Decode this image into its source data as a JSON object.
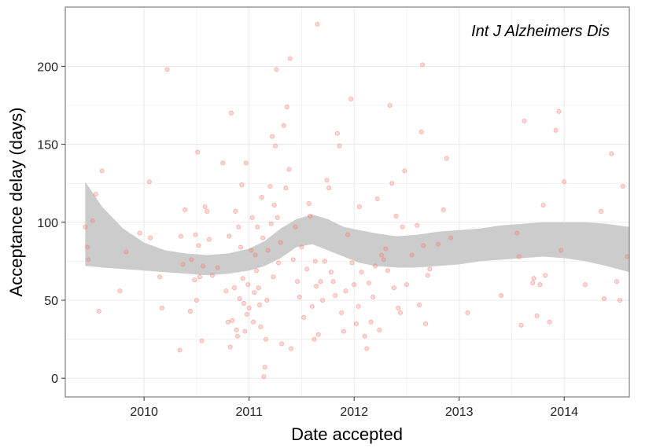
{
  "chart_data": {
    "type": "scatter",
    "annotation": "Int J Alzheimers Dis",
    "xlabel": "Date accepted",
    "ylabel": "Acceptance delay (days)",
    "xlim": [
      2009.25,
      2014.62
    ],
    "ylim": [
      -12,
      238
    ],
    "x_ticks": [
      2010,
      2011,
      2012,
      2013,
      2014
    ],
    "x_tick_labels": [
      "2010",
      "2011",
      "2012",
      "2013",
      "2014"
    ],
    "y_ticks": [
      0,
      50,
      100,
      150,
      200
    ],
    "y_tick_labels": [
      "0",
      "50",
      "100",
      "150",
      "200"
    ],
    "grid": true,
    "colors": {
      "points": "#f8766d",
      "band": "#cccccc",
      "grid": "#ebebeb",
      "border": "#7f7f7f"
    },
    "points": [
      [
        2009.44,
        97
      ],
      [
        2009.46,
        84
      ],
      [
        2009.47,
        76
      ],
      [
        2009.51,
        101
      ],
      [
        2009.54,
        118
      ],
      [
        2009.57,
        43
      ],
      [
        2009.6,
        133
      ],
      [
        2009.77,
        56
      ],
      [
        2009.83,
        81
      ],
      [
        2009.96,
        93
      ],
      [
        2010.05,
        126
      ],
      [
        2010.06,
        90
      ],
      [
        2010.15,
        65
      ],
      [
        2010.17,
        45
      ],
      [
        2010.22,
        198
      ],
      [
        2010.34,
        18
      ],
      [
        2010.35,
        91
      ],
      [
        2010.37,
        73
      ],
      [
        2010.39,
        108
      ],
      [
        2010.44,
        43
      ],
      [
        2010.45,
        76
      ],
      [
        2010.48,
        63
      ],
      [
        2010.49,
        92
      ],
      [
        2010.5,
        50
      ],
      [
        2010.51,
        145
      ],
      [
        2010.52,
        85
      ],
      [
        2010.53,
        65
      ],
      [
        2010.55,
        24
      ],
      [
        2010.56,
        72
      ],
      [
        2010.58,
        110
      ],
      [
        2010.6,
        107
      ],
      [
        2010.62,
        89
      ],
      [
        2010.65,
        66
      ],
      [
        2010.7,
        71
      ],
      [
        2010.75,
        138
      ],
      [
        2010.78,
        56
      ],
      [
        2010.8,
        36
      ],
      [
        2010.81,
        91
      ],
      [
        2010.82,
        20
      ],
      [
        2010.83,
        170
      ],
      [
        2010.84,
        37
      ],
      [
        2010.86,
        58
      ],
      [
        2010.87,
        107
      ],
      [
        2010.88,
        31
      ],
      [
        2010.89,
        27
      ],
      [
        2010.9,
        97
      ],
      [
        2010.91,
        51
      ],
      [
        2010.92,
        84
      ],
      [
        2010.93,
        124
      ],
      [
        2010.94,
        64
      ],
      [
        2010.95,
        48
      ],
      [
        2010.96,
        30
      ],
      [
        2010.97,
        138
      ],
      [
        2010.98,
        41
      ],
      [
        2010.99,
        60
      ],
      [
        2011.0,
        45
      ],
      [
        2011.02,
        82
      ],
      [
        2011.03,
        103
      ],
      [
        2011.04,
        36
      ],
      [
        2011.05,
        55
      ],
      [
        2011.06,
        79
      ],
      [
        2011.07,
        69
      ],
      [
        2011.08,
        97
      ],
      [
        2011.09,
        58
      ],
      [
        2011.1,
        47
      ],
      [
        2011.11,
        33
      ],
      [
        2011.12,
        116
      ],
      [
        2011.13,
        90
      ],
      [
        2011.14,
        1
      ],
      [
        2011.15,
        7
      ],
      [
        2011.16,
        25
      ],
      [
        2011.17,
        50
      ],
      [
        2011.18,
        82
      ],
      [
        2011.2,
        123
      ],
      [
        2011.21,
        99
      ],
      [
        2011.22,
        155
      ],
      [
        2011.23,
        65
      ],
      [
        2011.24,
        111
      ],
      [
        2011.25,
        149
      ],
      [
        2011.26,
        198
      ],
      [
        2011.27,
        103
      ],
      [
        2011.28,
        74
      ],
      [
        2011.3,
        87
      ],
      [
        2011.31,
        22
      ],
      [
        2011.33,
        162
      ],
      [
        2011.35,
        122
      ],
      [
        2011.36,
        174
      ],
      [
        2011.38,
        134
      ],
      [
        2011.39,
        205
      ],
      [
        2011.4,
        19
      ],
      [
        2011.42,
        76
      ],
      [
        2011.44,
        97
      ],
      [
        2011.46,
        62
      ],
      [
        2011.48,
        52
      ],
      [
        2011.5,
        84
      ],
      [
        2011.52,
        39
      ],
      [
        2011.55,
        70
      ],
      [
        2011.57,
        112
      ],
      [
        2011.58,
        104
      ],
      [
        2011.6,
        46
      ],
      [
        2011.62,
        25
      ],
      [
        2011.63,
        75
      ],
      [
        2011.64,
        59
      ],
      [
        2011.65,
        227
      ],
      [
        2011.66,
        28
      ],
      [
        2011.68,
        62
      ],
      [
        2011.7,
        50
      ],
      [
        2011.72,
        75
      ],
      [
        2011.74,
        127
      ],
      [
        2011.76,
        122
      ],
      [
        2011.78,
        68
      ],
      [
        2011.8,
        62
      ],
      [
        2011.82,
        53
      ],
      [
        2011.84,
        157
      ],
      [
        2011.86,
        149
      ],
      [
        2011.88,
        42
      ],
      [
        2011.9,
        30
      ],
      [
        2011.92,
        56
      ],
      [
        2011.94,
        92
      ],
      [
        2011.97,
        179
      ],
      [
        2011.98,
        74
      ],
      [
        2012.0,
        60
      ],
      [
        2012.02,
        35
      ],
      [
        2012.04,
        46
      ],
      [
        2012.05,
        110
      ],
      [
        2012.07,
        68
      ],
      [
        2012.1,
        27
      ],
      [
        2012.12,
        19
      ],
      [
        2012.14,
        61
      ],
      [
        2012.16,
        36
      ],
      [
        2012.18,
        52
      ],
      [
        2012.2,
        72
      ],
      [
        2012.22,
        115
      ],
      [
        2012.24,
        31
      ],
      [
        2012.26,
        79
      ],
      [
        2012.28,
        76
      ],
      [
        2012.3,
        83
      ],
      [
        2012.32,
        69
      ],
      [
        2012.34,
        175
      ],
      [
        2012.36,
        125
      ],
      [
        2012.38,
        58
      ],
      [
        2012.4,
        104
      ],
      [
        2012.42,
        45
      ],
      [
        2012.44,
        42
      ],
      [
        2012.46,
        97
      ],
      [
        2012.48,
        133
      ],
      [
        2012.5,
        60
      ],
      [
        2012.55,
        79
      ],
      [
        2012.6,
        98
      ],
      [
        2012.62,
        47
      ],
      [
        2012.64,
        158
      ],
      [
        2012.65,
        201
      ],
      [
        2012.66,
        85
      ],
      [
        2012.68,
        35
      ],
      [
        2012.7,
        66
      ],
      [
        2012.72,
        70
      ],
      [
        2012.8,
        86
      ],
      [
        2012.85,
        108
      ],
      [
        2012.88,
        141
      ],
      [
        2012.92,
        90
      ],
      [
        2013.08,
        42
      ],
      [
        2013.4,
        53
      ],
      [
        2013.55,
        93
      ],
      [
        2013.57,
        78
      ],
      [
        2013.59,
        34
      ],
      [
        2013.62,
        165
      ],
      [
        2013.7,
        61
      ],
      [
        2013.71,
        64
      ],
      [
        2013.74,
        40
      ],
      [
        2013.77,
        60
      ],
      [
        2013.8,
        111
      ],
      [
        2013.82,
        66
      ],
      [
        2013.86,
        36
      ],
      [
        2013.92,
        159
      ],
      [
        2013.95,
        171
      ],
      [
        2013.97,
        82
      ],
      [
        2014.0,
        126
      ],
      [
        2014.2,
        60
      ],
      [
        2014.35,
        107
      ],
      [
        2014.38,
        51
      ],
      [
        2014.45,
        144
      ],
      [
        2014.5,
        62
      ],
      [
        2014.53,
        50
      ],
      [
        2014.56,
        123
      ],
      [
        2014.6,
        78
      ]
    ],
    "smooth_band": [
      [
        2009.44,
        72,
        126
      ],
      [
        2009.6,
        71,
        110
      ],
      [
        2009.8,
        70,
        96
      ],
      [
        2010.0,
        69,
        87
      ],
      [
        2010.2,
        68,
        82
      ],
      [
        2010.4,
        67,
        80
      ],
      [
        2010.6,
        66,
        79
      ],
      [
        2010.8,
        67,
        80
      ],
      [
        2011.0,
        69,
        83
      ],
      [
        2011.15,
        72,
        88
      ],
      [
        2011.3,
        77,
        96
      ],
      [
        2011.45,
        84,
        102
      ],
      [
        2011.6,
        86,
        105
      ],
      [
        2011.75,
        82,
        102
      ],
      [
        2011.9,
        78,
        97
      ],
      [
        2012.05,
        74,
        95
      ],
      [
        2012.2,
        72,
        93
      ],
      [
        2012.4,
        71,
        91
      ],
      [
        2012.6,
        71,
        92
      ],
      [
        2012.8,
        72,
        94
      ],
      [
        2013.0,
        73,
        95
      ],
      [
        2013.2,
        75,
        96
      ],
      [
        2013.4,
        76,
        98
      ],
      [
        2013.6,
        77,
        99
      ],
      [
        2013.8,
        78,
        100
      ],
      [
        2014.0,
        77,
        100
      ],
      [
        2014.2,
        75,
        100
      ],
      [
        2014.4,
        72,
        99
      ],
      [
        2014.62,
        68,
        97
      ]
    ]
  }
}
